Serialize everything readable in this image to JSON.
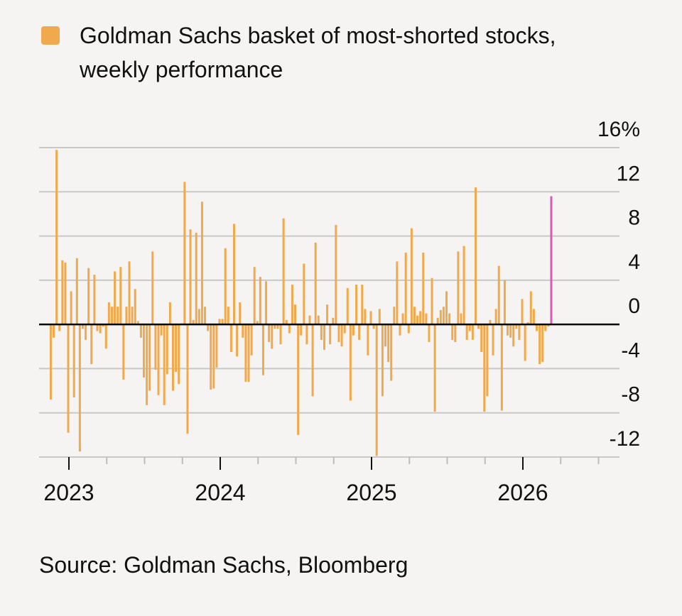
{
  "legend": {
    "label": "Goldman Sachs basket of most-shorted stocks,\nweekly performance",
    "color": "#f0a94c"
  },
  "source": "Source: Goldman Sachs, Bloomberg",
  "colors": {
    "bar": "#f0a94c",
    "highlight": "#d95cb0",
    "grid": "#c8c8c8",
    "zero": "#000000"
  },
  "chart_data": {
    "type": "bar",
    "title": "Goldman Sachs basket of most-shorted stocks, weekly performance",
    "ylabel": "",
    "ylim": [
      -12,
      16
    ],
    "yticks": [
      16,
      12,
      8,
      4,
      0,
      -4,
      -8,
      -12
    ],
    "ytick_labels": [
      "16%",
      "12",
      "8",
      "4",
      "0",
      "-4",
      "-8",
      "-12"
    ],
    "xticks": [
      2023,
      2024,
      2025,
      2026
    ],
    "xtick_labels": [
      "2023",
      "2024",
      "2025",
      "2026"
    ],
    "x_start_year": 2022.88,
    "weeks_per_year": 52,
    "series": [
      {
        "name": "Goldman Sachs basket of most-shorted stocks, weekly performance",
        "values": [
          -6.8,
          -1.2,
          15.8,
          -0.6,
          5.8,
          5.6,
          -9.8,
          3.0,
          -6.6,
          6.0,
          -11.5,
          -0.4,
          -1.4,
          5.1,
          -3.6,
          4.5,
          -0.6,
          -0.8,
          -0.2,
          -2.2,
          2.0,
          1.6,
          4.8,
          1.6,
          5.2,
          -5.0,
          1.6,
          5.7,
          1.6,
          3.2,
          0.3,
          -1.2,
          -4.8,
          -7.3,
          -6.0,
          6.6,
          -4.1,
          -6.4,
          -1.0,
          -7.3,
          -4.5,
          2.0,
          -6.0,
          -4.3,
          -5.4,
          0.1,
          12.9,
          -9.9,
          8.6,
          0.4,
          8.3,
          1.4,
          11.1,
          1.6,
          -0.6,
          -5.9,
          -5.8,
          -3.9,
          0.5,
          0.5,
          6.9,
          1.6,
          -2.5,
          9.1,
          -2.9,
          2.0,
          -1.2,
          -5.2,
          -5.2,
          -2.8,
          5.2,
          0.3,
          4.3,
          -4.6,
          3.9,
          -1.6,
          -2.2,
          -0.4,
          -0.4,
          -1.8,
          9.6,
          0.4,
          -0.8,
          3.6,
          1.8,
          -10.0,
          -1.0,
          5.5,
          -1.8,
          0.8,
          -6.5,
          7.4,
          0.8,
          -1.4,
          -2.3,
          1.8,
          -1.8,
          0.6,
          9.0,
          -1.6,
          -2.0,
          -0.8,
          3.3,
          -6.9,
          -1.0,
          3.6,
          -1.4,
          3.6,
          1.4,
          -2.8,
          1.2,
          -0.4,
          -11.9,
          1.4,
          -6.5,
          -2.0,
          -3.4,
          -5.1,
          1.6,
          5.7,
          -1.0,
          1.0,
          6.5,
          -0.8,
          8.7,
          1.6,
          0.8,
          1.2,
          6.5,
          1.0,
          -1.6,
          4.2,
          -7.9,
          0.6,
          1.3,
          1.6,
          3.0,
          1.0,
          -1.4,
          -1.6,
          6.6,
          1.0,
          7.1,
          -1.4,
          -0.6,
          -1.4,
          12.4,
          -0.4,
          -2.5,
          -7.9,
          -6.5,
          0.4,
          -2.8,
          1.4,
          5.3,
          -7.8,
          4.0,
          -1.0,
          -1.2,
          -2.0,
          -0.4,
          -1.4,
          2.3,
          -3.3,
          0.2,
          3.0,
          1.4,
          -0.6,
          -3.6,
          -3.4,
          -0.6,
          -0.2,
          11.6
        ]
      }
    ],
    "highlight_last": true
  }
}
